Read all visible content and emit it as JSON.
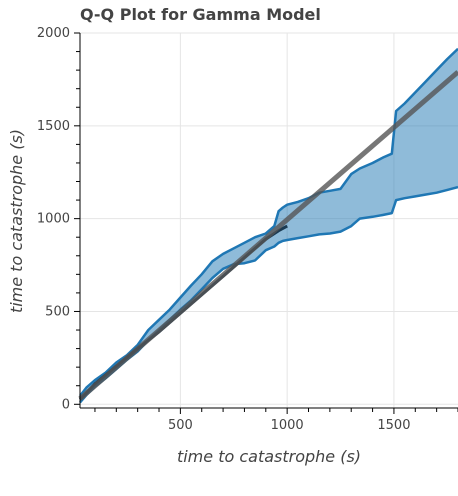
{
  "chart_data": {
    "type": "area",
    "title": "Q-Q Plot for Gamma Model",
    "xlabel": "time to catastrophe (s)",
    "ylabel": "time to catastrophe (s)",
    "xlim": [
      30,
      1800
    ],
    "ylim": [
      -20,
      2000
    ],
    "xticks": [
      500,
      1000,
      1500
    ],
    "yticks": [
      0,
      500,
      1000,
      1500,
      2000
    ],
    "grid": true,
    "colors": {
      "band": "#1f77b4",
      "band_fill": "#1f77b4",
      "reference": "#555555",
      "line": "#1a3a52"
    },
    "reference_line": {
      "x": [
        30,
        1800
      ],
      "y": [
        30,
        1790
      ]
    },
    "band": {
      "x": [
        30,
        60,
        100,
        150,
        200,
        250,
        300,
        350,
        400,
        450,
        500,
        550,
        600,
        650,
        700,
        750,
        800,
        850,
        900,
        940,
        960,
        980,
        1000,
        1050,
        1100,
        1150,
        1200,
        1250,
        1300,
        1340,
        1400,
        1450,
        1490,
        1510,
        1550,
        1600,
        1650,
        1700,
        1750,
        1800
      ],
      "upper": [
        45,
        90,
        130,
        170,
        225,
        265,
        320,
        400,
        455,
        510,
        575,
        640,
        700,
        770,
        810,
        840,
        870,
        900,
        920,
        960,
        1040,
        1060,
        1075,
        1090,
        1110,
        1140,
        1150,
        1160,
        1240,
        1270,
        1300,
        1330,
        1350,
        1580,
        1620,
        1680,
        1740,
        1800,
        1860,
        1915
      ],
      "lower": [
        10,
        50,
        95,
        140,
        190,
        240,
        285,
        345,
        400,
        455,
        510,
        560,
        620,
        680,
        730,
        755,
        760,
        775,
        830,
        850,
        870,
        880,
        885,
        895,
        905,
        915,
        920,
        930,
        960,
        1000,
        1010,
        1020,
        1030,
        1100,
        1110,
        1120,
        1130,
        1140,
        1155,
        1170
      ]
    },
    "median": {
      "x": [
        30,
        100,
        200,
        300,
        400,
        500,
        600,
        700,
        800,
        900,
        960,
        1000
      ],
      "y": [
        25,
        110,
        205,
        300,
        390,
        490,
        590,
        690,
        790,
        890,
        935,
        960
      ]
    }
  }
}
